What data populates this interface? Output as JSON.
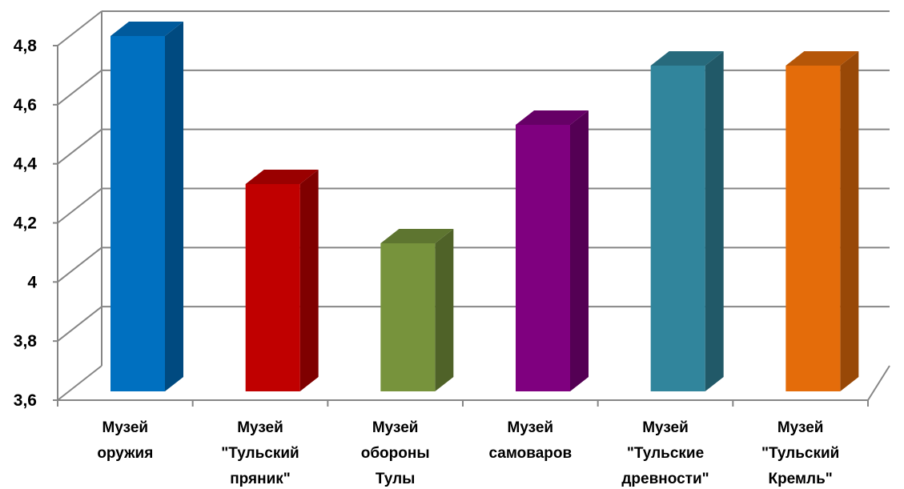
{
  "chart_data": {
    "type": "bar",
    "style": "3d-column",
    "categories": [
      [
        "Музей",
        "оружия"
      ],
      [
        "Музей",
        "\"Тульский",
        "пряник\""
      ],
      [
        "Музей",
        "обороны",
        "Тулы"
      ],
      [
        "Музей",
        "самоваров"
      ],
      [
        "Музей",
        "\"Тульские",
        "древности\""
      ],
      [
        "Музей",
        "\"Тульский",
        "Кремль\""
      ]
    ],
    "values": [
      4.8,
      4.3,
      4.1,
      4.5,
      4.7,
      4.7
    ],
    "ylim": [
      3.6,
      4.8
    ],
    "yticks": [
      "3,6",
      "3,8",
      "4",
      "4,2",
      "4,4",
      "4,6",
      "4,8"
    ],
    "grid": true,
    "legend": "none",
    "colors": [
      {
        "front": "#0070C0",
        "side": "#004A80",
        "top": "#005A9C"
      },
      {
        "front": "#C00000",
        "side": "#7F0000",
        "top": "#9A0000"
      },
      {
        "front": "#77933C",
        "side": "#4F6228",
        "top": "#5E7530"
      },
      {
        "front": "#7F007F",
        "side": "#540054",
        "top": "#660066"
      },
      {
        "front": "#31859C",
        "side": "#215968",
        "top": "#276A7C"
      },
      {
        "front": "#E46C0A",
        "side": "#984807",
        "top": "#B55608"
      }
    ],
    "gridColor": "#868686"
  }
}
